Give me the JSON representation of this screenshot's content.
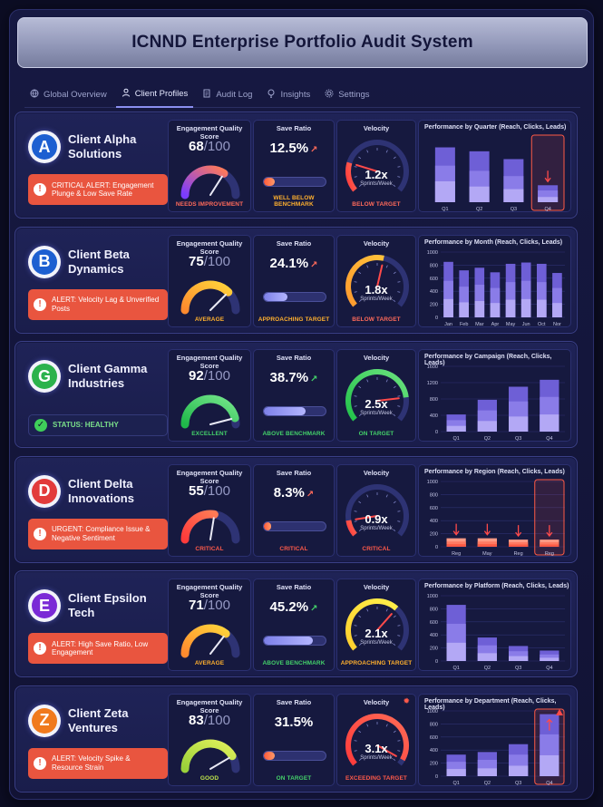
{
  "app": {
    "title": "ICNND Enterprise Portfolio Audit System"
  },
  "tabs": [
    {
      "label": "Global Overview",
      "icon": "globe-icon",
      "active": false
    },
    {
      "label": "Client Profiles",
      "icon": "user-icon",
      "active": true
    },
    {
      "label": "Audit Log",
      "icon": "document-icon",
      "active": false
    },
    {
      "label": "Insights",
      "icon": "lightbulb-icon",
      "active": false
    },
    {
      "label": "Settings",
      "icon": "gear-icon",
      "active": false
    }
  ],
  "labels": {
    "eqs": "Engagement Quality Score",
    "save": "Save Ratio",
    "velocity": "Velocity",
    "velocity_unit": "Sprints/Week",
    "eqs_max": "/100"
  },
  "colors": {
    "critical": "#ff4d4d",
    "warning": "#ffb02e",
    "good": "#44d16a",
    "accent": "#8b8ff0",
    "alert_bg": "#e9553f"
  },
  "clients": [
    {
      "name": "Client Alpha Solutions",
      "logo_letter": "A",
      "logo_color": "#1d5fd1",
      "alert": {
        "type": "alert",
        "text": "CRITICAL ALERT: Engagement Plunge & Low Save Rate"
      },
      "eqs": {
        "value": "68",
        "score": 68,
        "status": "NEEDS IMPROVEMENT",
        "status_color": "#ff6a5a"
      },
      "save": {
        "value": "12.5%",
        "fraction": 0.18,
        "trend": "up",
        "trend_color": "#ff6a5a",
        "status": "WELL BELOW BENCHMARK",
        "status_color": "#ffb02e",
        "bar_color": "#ff7a50"
      },
      "velocity": {
        "value": "1.2x",
        "level": 0.22,
        "status": "BELOW TARGET",
        "status_color": "#ff6a5a",
        "gauge": "red",
        "warn": false
      },
      "chart_data": {
        "type": "bar",
        "title": "Performance by Quarter (Reach, Clicks, Leads)",
        "categories": [
          "Q1",
          "Q2",
          "Q3",
          "Q4"
        ],
        "series": [
          {
            "values": [
              420,
              390,
              330,
              130
            ]
          },
          {
            "values": [
              280,
              240,
              200,
              90
            ]
          },
          {
            "values": [
              160,
              120,
              100,
              40
            ]
          }
        ],
        "ylim": [
          0,
          500
        ],
        "highlight": [
          3
        ],
        "highlight_kind": "down",
        "show_axis": false
      }
    },
    {
      "name": "Client Beta Dynamics",
      "logo_letter": "B",
      "logo_color": "#1d5fd1",
      "alert": {
        "type": "alert",
        "text": "ALERT: Velocity Lag & Unverified Posts"
      },
      "eqs": {
        "value": "75",
        "score": 75,
        "status": "AVERAGE",
        "status_color": "#ffb02e"
      },
      "save": {
        "value": "24.1%",
        "fraction": 0.38,
        "trend": "up",
        "trend_color": "#ff6a5a",
        "status": "APPROACHING TARGET",
        "status_color": "#ffb02e",
        "bar_color": "#8e8ff0"
      },
      "velocity": {
        "value": "1.8x",
        "level": 0.55,
        "status": "BELOW TARGET",
        "status_color": "#ff6a5a",
        "gauge": "orange",
        "warn": false
      },
      "chart_data": {
        "type": "bar",
        "title": "Performance by Month (Reach, Clicks, Leads)",
        "categories": [
          "Jan",
          "Feb",
          "Mar",
          "Apr",
          "May",
          "Jun",
          "Oct",
          "Nor"
        ],
        "ticks": [
          1000,
          800,
          600,
          400,
          200,
          0
        ],
        "series": [
          {
            "values": [
              850,
              720,
              760,
              690,
              820,
              840,
              820,
              680
            ]
          },
          {
            "values": [
              560,
              470,
              500,
              450,
              540,
              560,
              540,
              450
            ]
          },
          {
            "values": [
              280,
              230,
              250,
              220,
              270,
              280,
              270,
              220
            ]
          }
        ],
        "ylim": [
          0,
          1000
        ],
        "highlight": [],
        "show_axis": true
      }
    },
    {
      "name": "Client Gamma Industries",
      "logo_letter": "G",
      "logo_color": "#2bb24c",
      "alert": {
        "type": "ok",
        "text": "STATUS: HEALTHY"
      },
      "eqs": {
        "value": "92",
        "score": 92,
        "status": "EXCELLENT",
        "status_color": "#44d16a"
      },
      "save": {
        "value": "38.7%",
        "fraction": 0.68,
        "trend": "up",
        "trend_color": "#44d16a",
        "status": "ABOVE BENCHMARK",
        "status_color": "#44d16a",
        "bar_color": "#8e8ff0"
      },
      "velocity": {
        "value": "2.5x",
        "level": 0.82,
        "status": "ON TARGET",
        "status_color": "#44d16a",
        "gauge": "green",
        "warn": false
      },
      "chart_data": {
        "type": "bar",
        "title": "Performance by Campaign (Reach, Clicks, Leads)",
        "categories": [
          "Q1",
          "Q2",
          "Q3",
          "Q4"
        ],
        "ticks": [
          1600,
          1200,
          800,
          400,
          0
        ],
        "series": [
          {
            "values": [
              420,
              780,
              1100,
              1270
            ]
          },
          {
            "values": [
              280,
              520,
              740,
              850
            ]
          },
          {
            "values": [
              140,
              260,
              370,
              420
            ]
          }
        ],
        "ylim": [
          0,
          1600
        ],
        "highlight": [],
        "show_axis": true
      }
    },
    {
      "name": "Client Delta Innovations",
      "logo_letter": "D",
      "logo_color": "#e23b3b",
      "alert": {
        "type": "alert",
        "text": "URGENT: Compliance Issue & Negative Sentiment"
      },
      "eqs": {
        "value": "55",
        "score": 55,
        "status": "CRITICAL",
        "status_color": "#ff5a4a"
      },
      "save": {
        "value": "8.3%",
        "fraction": 0.12,
        "trend": "up",
        "trend_color": "#ff6a5a",
        "status": "CRITICAL",
        "status_color": "#ff5a4a",
        "bar_color": "#ff7a50"
      },
      "velocity": {
        "value": "0.9x",
        "level": 0.12,
        "status": "CRITICAL",
        "status_color": "#ff5a4a",
        "gauge": "red",
        "warn": false
      },
      "chart_data": {
        "type": "bar",
        "title": "Performance by Region (Reach, Clicks, Leads)",
        "categories": [
          "Reg",
          "May",
          "Reg",
          "Reg"
        ],
        "ticks": [
          1000,
          800,
          600,
          400,
          200,
          0
        ],
        "series": [
          {
            "values": [
              130,
              130,
              110,
              110
            ]
          },
          {
            "values": [
              80,
              80,
              70,
              70
            ]
          },
          {
            "values": [
              40,
              40,
              35,
              35
            ]
          }
        ],
        "ylim": [
          0,
          1000
        ],
        "highlight": [
          3
        ],
        "highlight_kind": "down-all",
        "show_axis": true,
        "bar_color": "#ff6a55"
      }
    },
    {
      "name": "Client Epsilon Tech",
      "logo_letter": "E",
      "logo_color": "#7a2ad6",
      "alert": {
        "type": "alert",
        "text": "ALERT: High Save Ratio, Low Engagement"
      },
      "eqs": {
        "value": "71",
        "score": 71,
        "status": "AVERAGE",
        "status_color": "#ffb02e"
      },
      "save": {
        "value": "45.2%",
        "fraction": 0.8,
        "trend": "up",
        "trend_color": "#44d16a",
        "status": "ABOVE BENCHMARK",
        "status_color": "#44d16a",
        "bar_color": "#8e8ff0"
      },
      "velocity": {
        "value": "2.1x",
        "level": 0.66,
        "status": "APPROACHING TARGET",
        "status_color": "#ffb02e",
        "gauge": "yellow",
        "warn": false
      },
      "chart_data": {
        "type": "bar",
        "title": "Performance by Platform (Reach, Clicks, Leads)",
        "categories": [
          "Q1",
          "Q2",
          "Q3",
          "Q4"
        ],
        "ticks": [
          1000,
          800,
          600,
          400,
          200,
          0
        ],
        "series": [
          {
            "values": [
              860,
              360,
              230,
              160
            ]
          },
          {
            "values": [
              570,
              240,
              150,
              100
            ]
          },
          {
            "values": [
              280,
              120,
              75,
              50
            ]
          }
        ],
        "ylim": [
          0,
          1000
        ],
        "highlight": [],
        "show_axis": true
      }
    },
    {
      "name": "Client Zeta Ventures",
      "logo_letter": "Z",
      "logo_color": "#f07a1d",
      "alert": {
        "type": "alert",
        "text": "ALERT: Velocity Spike & Resource Strain"
      },
      "eqs": {
        "value": "83",
        "score": 83,
        "status": "GOOD",
        "status_color": "#bde34a"
      },
      "save": {
        "value": "31.5%",
        "fraction": 0.18,
        "trend": "none",
        "trend_color": "#44d16a",
        "status": "ON TARGET",
        "status_color": "#44d16a",
        "bar_color": "#ff7a50"
      },
      "velocity": {
        "value": "3.1x",
        "level": 0.96,
        "status": "EXCEEDING TARGET",
        "status_color": "#ff5a4a",
        "gauge": "red",
        "warn": true
      },
      "chart_data": {
        "type": "bar",
        "title": "Performance by Department (Reach, Clicks, Leads)",
        "categories": [
          "Q1",
          "Q2",
          "Q3",
          "Q4"
        ],
        "ticks": [
          1000,
          800,
          600,
          400,
          200,
          0
        ],
        "series": [
          {
            "values": [
              330,
              370,
              490,
              950
            ]
          },
          {
            "values": [
              220,
              250,
              330,
              640
            ]
          },
          {
            "values": [
              110,
              120,
              160,
              320
            ]
          }
        ],
        "ylim": [
          0,
          1000
        ],
        "highlight": [
          3
        ],
        "highlight_kind": "up",
        "show_axis": true
      }
    }
  ]
}
